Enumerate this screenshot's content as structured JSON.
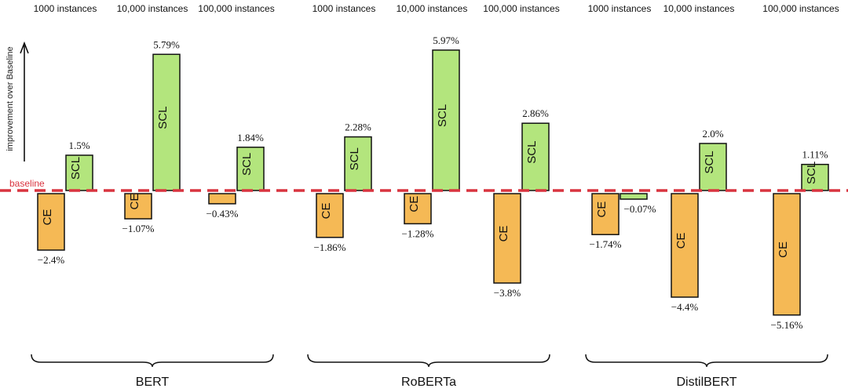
{
  "chart_data": {
    "type": "bar",
    "ylabel": "improvement over Baseline",
    "baseline_label": "baseline",
    "bar_labels": {
      "ce": "CE",
      "scl": "SCL"
    },
    "size_labels": [
      "1000 instances",
      "10,000 instances",
      "100,000 instances"
    ],
    "models": [
      "BERT",
      "RoBERTa",
      "DistilBERT"
    ],
    "series": [
      {
        "name": "CE",
        "values": [
          -2.4,
          -1.07,
          -0.43,
          -1.86,
          -1.28,
          -3.8,
          -1.74,
          -4.4,
          -5.16
        ],
        "labels": [
          "−2.4%",
          "−1.07%",
          "−0.43%",
          "−1.86%",
          "−1.28%",
          "−3.8%",
          "−1.74%",
          "−4.4%",
          "−5.16%"
        ]
      },
      {
        "name": "SCL",
        "values": [
          1.5,
          5.79,
          1.84,
          2.28,
          5.97,
          2.86,
          -0.07,
          2.0,
          1.11
        ],
        "labels": [
          "1.5%",
          "5.79%",
          "1.84%",
          "2.28%",
          "5.97%",
          "2.86%",
          "−0.07%",
          "2.0%",
          "1.11%"
        ]
      }
    ],
    "colors": {
      "ce": "#f5b955",
      "scl": "#b3e57d",
      "baseline": "#d9343f"
    }
  }
}
